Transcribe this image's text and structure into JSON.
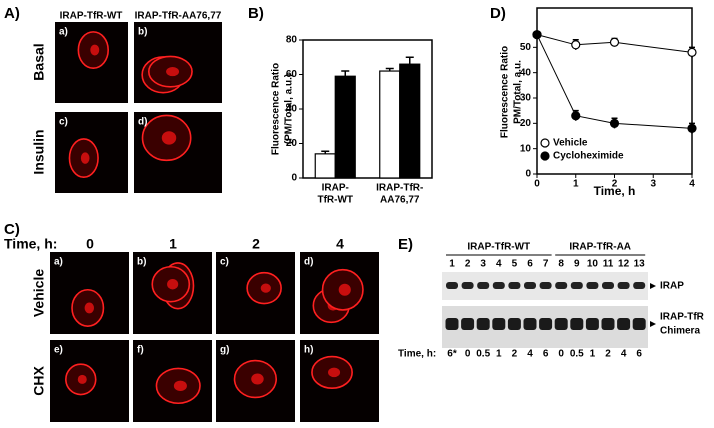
{
  "panel_labels": [
    "A)",
    "B)",
    "C)",
    "D)",
    "E)"
  ],
  "panel_a": {
    "columns": [
      "IRAP-TfR-WT",
      "IRAP-TfR-AA76,77"
    ],
    "rows": [
      "Basal",
      "Insulin"
    ],
    "images": [
      "a)",
      "b)",
      "c)",
      "d)"
    ]
  },
  "panel_c": {
    "time_label": "Time, h:",
    "times": [
      "0",
      "1",
      "2",
      "4"
    ],
    "rows": [
      "Vehicle",
      "CHX"
    ],
    "images": [
      "a)",
      "b)",
      "c)",
      "d)",
      "e)",
      "f)",
      "g)",
      "h)"
    ]
  },
  "panel_e": {
    "groups": [
      "IRAP-TfR-WT",
      "IRAP-TfR-AA"
    ],
    "lanes": [
      "1",
      "2",
      "3",
      "4",
      "5",
      "6",
      "7",
      "8",
      "9",
      "10",
      "11",
      "12",
      "13"
    ],
    "bands": [
      {
        "lines": [
          "IRAP"
        ]
      },
      {
        "lines": [
          "IRAP-TfR",
          "Chimera"
        ]
      }
    ],
    "time_label": "Time, h:",
    "times": [
      "6*",
      "0",
      "0.5",
      "1",
      "2",
      "4",
      "6",
      "0",
      "0.5",
      "1",
      "2",
      "4",
      "6"
    ]
  },
  "chart_data": [
    {
      "type": "bar",
      "ylabel": [
        "Fluorescence Ratio",
        "(PM/Total, a.u.)"
      ],
      "categories": [
        [
          "IRAP-",
          "TfR-WT"
        ],
        [
          "IRAP-TfR-",
          "AA76,77"
        ]
      ],
      "series": [
        {
          "color": "#ffffff",
          "values": [
            14,
            62
          ],
          "errors": [
            1.5,
            1.5
          ]
        },
        {
          "color": "#000000",
          "values": [
            59,
            66
          ],
          "errors": [
            3,
            4
          ]
        }
      ],
      "ylim": [
        0,
        80
      ],
      "yticks": [
        0,
        20,
        40,
        60,
        80
      ]
    },
    {
      "type": "line",
      "ylabel": [
        "Fluorescence Ratio",
        "PM/Total,  a.u."
      ],
      "xlabel": "Time, h",
      "x": [
        0,
        1,
        2,
        4
      ],
      "xlim": [
        0,
        4
      ],
      "xticks": [
        0,
        1,
        2,
        3,
        4
      ],
      "ylim": [
        0,
        60
      ],
      "yticks": [
        0,
        10,
        20,
        30,
        40,
        50
      ],
      "legend": "lower left",
      "series": [
        {
          "name": "Vehicle",
          "color": "#ffffff",
          "values": [
            55,
            51,
            52,
            48
          ],
          "errors": [
            1,
            2,
            1.5,
            2
          ]
        },
        {
          "name": "Cycloheximide",
          "color": "#000000",
          "values": [
            55,
            23,
            20,
            18
          ],
          "errors": [
            1,
            2,
            2,
            2
          ]
        }
      ]
    }
  ]
}
